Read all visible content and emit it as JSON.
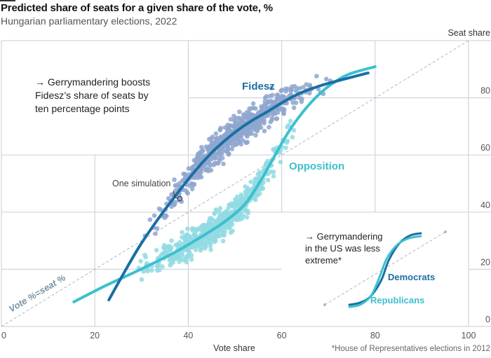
{
  "header": {
    "title": "Predicted share of seats for a given share of the vote, %",
    "subtitle": "Hungarian parliamentary elections, 2022"
  },
  "chart_data": {
    "type": "scatter",
    "title": "Predicted share of seats for a given share of the vote, %",
    "subtitle": "Hungarian parliamentary elections, 2022",
    "xlabel": "Vote share",
    "ylabel": "Seat share",
    "xlim": [
      0,
      100
    ],
    "ylim": [
      0,
      100
    ],
    "x_ticks": [
      "0",
      "20",
      "40",
      "60",
      "80",
      "100"
    ],
    "y_ticks": [
      "0",
      "20",
      "40",
      "60",
      "80"
    ],
    "grid": true,
    "colors": {
      "fidesz_line": "#1a6fa3",
      "fidesz_dots": "#8fa6cf",
      "opposition_line": "#3cc0cd",
      "opposition_dots": "#92dbe3",
      "grid": "#cfd6dc",
      "diagonal": "#a9b9c4",
      "democrats": "#1a6fa3",
      "republicans": "#3cc0cd"
    },
    "series": [
      {
        "name": "Fidesz",
        "kind": "fitted-line",
        "x": [
          23,
          26.5,
          29.7,
          33.5,
          37.2,
          41,
          44.7,
          47.8,
          50.8,
          53.8,
          56.8,
          60.5,
          64.3,
          68.8,
          73.3,
          78.5
        ],
        "y": [
          9.3,
          19.5,
          28.4,
          37.5,
          45.6,
          53.5,
          60.3,
          65,
          68.9,
          72.2,
          75,
          78.7,
          81.9,
          84.5,
          86.5,
          88.7
        ]
      },
      {
        "name": "Opposition",
        "kind": "fitted-line",
        "x": [
          15.5,
          22.2,
          29.7,
          37.2,
          44.7,
          48.5,
          52.3,
          55.3,
          58.3,
          60.5,
          62.8,
          65.8,
          68.8,
          71.8,
          74.8,
          80
        ],
        "y": [
          8.6,
          14.2,
          19.9,
          26,
          33.3,
          37.5,
          43.1,
          50.5,
          59.1,
          65.5,
          71.3,
          77.5,
          82.4,
          86,
          88.5,
          90.9
        ]
      },
      {
        "name": "Fidesz simulations",
        "kind": "scatter-cloud",
        "note": "Dense cloud of simulated outcomes around the Fidesz curve, vote share ~23–78%"
      },
      {
        "name": "Opposition simulations",
        "kind": "scatter-cloud",
        "note": "Dense cloud of simulated outcomes around the Opposition curve, vote share ~15–80%"
      },
      {
        "name": "Vote %=seat %",
        "kind": "reference-line",
        "x": [
          0,
          100
        ],
        "y": [
          0,
          100
        ]
      }
    ],
    "highlight_point": {
      "label": "One simulation",
      "x": 38.2,
      "y": 44.7
    },
    "annotations": {
      "main_note": [
        "→ Gerrymandering boosts",
        "Fidesz’s share of seats by",
        "ten percentage points"
      ],
      "series_labels": {
        "fidesz": "Fidesz",
        "opposition": "Opposition"
      },
      "one_simulation": "One simulation",
      "diagonal_label": "Vote %=seat %"
    },
    "inset": {
      "note": [
        "→ Gerrymandering",
        "in the US was less",
        "extreme*"
      ],
      "series_labels": {
        "democrats": "Democrats",
        "republicans": "Republicans"
      },
      "series": [
        {
          "name": "Democrats",
          "x": [
            0.0,
            0.15,
            0.3,
            0.45,
            0.55,
            0.7,
            0.85,
            1.0
          ],
          "y": [
            0.0,
            0.03,
            0.12,
            0.35,
            0.62,
            0.86,
            0.97,
            1.0
          ]
        },
        {
          "name": "Republicans",
          "x": [
            0.0,
            0.15,
            0.3,
            0.42,
            0.52,
            0.67,
            0.83,
            1.0
          ],
          "y": [
            -0.03,
            0.0,
            0.12,
            0.38,
            0.64,
            0.84,
            0.93,
            0.96
          ]
        }
      ]
    },
    "footnote": "*House of Representatives elections in 2012"
  }
}
